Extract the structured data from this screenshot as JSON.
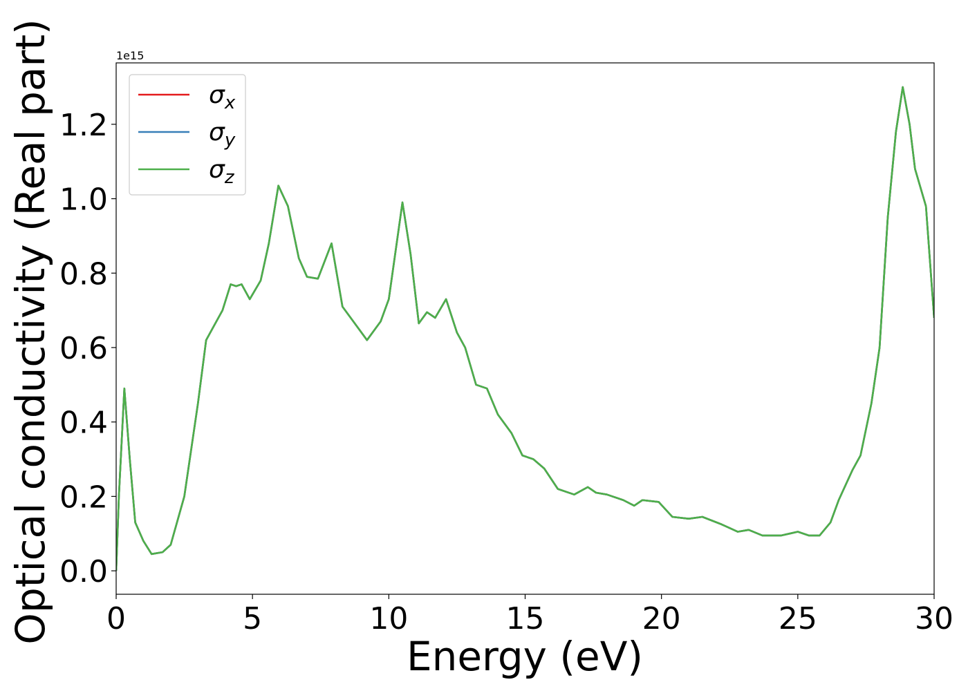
{
  "chart_data": {
    "type": "line",
    "x_label": "Energy (eV)",
    "y_label": "Optical conductivity (Real part)",
    "y_offset_label": "1e15",
    "x": [
      0,
      0.1,
      0.3,
      0.5,
      0.7,
      1.0,
      1.3,
      1.7,
      2.0,
      2.5,
      3.0,
      3.3,
      3.6,
      3.9,
      4.2,
      4.4,
      4.6,
      4.9,
      5.3,
      5.6,
      5.95,
      6.3,
      6.7,
      7.0,
      7.4,
      7.9,
      8.3,
      8.7,
      9.2,
      9.7,
      10.0,
      10.5,
      10.8,
      11.1,
      11.4,
      11.7,
      12.1,
      12.5,
      12.8,
      13.2,
      13.6,
      14.0,
      14.5,
      14.9,
      15.3,
      15.7,
      16.2,
      16.8,
      17.3,
      17.6,
      18.0,
      18.6,
      19.0,
      19.3,
      19.9,
      20.4,
      21.0,
      21.5,
      22.2,
      22.8,
      23.2,
      23.7,
      24.4,
      25.0,
      25.4,
      25.8,
      26.2,
      26.5,
      27.0,
      27.3,
      27.7,
      28.0,
      28.3,
      28.6,
      28.85,
      29.1,
      29.3,
      29.7,
      30
    ],
    "series": [
      {
        "name": "σx",
        "color": "#e41a1c",
        "values": [
          0.0,
          0.2,
          0.49,
          0.3,
          0.13,
          0.08,
          0.045,
          0.05,
          0.07,
          0.2,
          0.45,
          0.62,
          0.66,
          0.7,
          0.77,
          0.765,
          0.77,
          0.73,
          0.78,
          0.88,
          1.035,
          0.98,
          0.84,
          0.79,
          0.785,
          0.88,
          0.71,
          0.67,
          0.62,
          0.67,
          0.73,
          0.99,
          0.85,
          0.665,
          0.695,
          0.68,
          0.73,
          0.64,
          0.6,
          0.5,
          0.49,
          0.42,
          0.37,
          0.31,
          0.3,
          0.275,
          0.22,
          0.205,
          0.225,
          0.21,
          0.205,
          0.19,
          0.175,
          0.19,
          0.185,
          0.145,
          0.14,
          0.145,
          0.125,
          0.105,
          0.11,
          0.095,
          0.095,
          0.105,
          0.095,
          0.095,
          0.13,
          0.19,
          0.27,
          0.31,
          0.45,
          0.6,
          0.95,
          1.18,
          1.3,
          1.2,
          1.08,
          0.98,
          0.68
        ]
      },
      {
        "name": "σy",
        "color": "#377eb8",
        "values": [
          0.0,
          0.2,
          0.49,
          0.3,
          0.13,
          0.08,
          0.045,
          0.05,
          0.07,
          0.2,
          0.45,
          0.62,
          0.66,
          0.7,
          0.77,
          0.765,
          0.77,
          0.73,
          0.78,
          0.88,
          1.035,
          0.98,
          0.84,
          0.79,
          0.785,
          0.88,
          0.71,
          0.67,
          0.62,
          0.67,
          0.73,
          0.99,
          0.85,
          0.665,
          0.695,
          0.68,
          0.73,
          0.64,
          0.6,
          0.5,
          0.49,
          0.42,
          0.37,
          0.31,
          0.3,
          0.275,
          0.22,
          0.205,
          0.225,
          0.21,
          0.205,
          0.19,
          0.175,
          0.19,
          0.185,
          0.145,
          0.14,
          0.145,
          0.125,
          0.105,
          0.11,
          0.095,
          0.095,
          0.105,
          0.095,
          0.095,
          0.13,
          0.19,
          0.27,
          0.31,
          0.45,
          0.6,
          0.95,
          1.18,
          1.3,
          1.2,
          1.08,
          0.98,
          0.68
        ]
      },
      {
        "name": "σz",
        "color": "#4daf4a",
        "values": [
          0.0,
          0.2,
          0.49,
          0.3,
          0.13,
          0.08,
          0.045,
          0.05,
          0.07,
          0.2,
          0.45,
          0.62,
          0.66,
          0.7,
          0.77,
          0.765,
          0.77,
          0.73,
          0.78,
          0.88,
          1.035,
          0.98,
          0.84,
          0.79,
          0.785,
          0.88,
          0.71,
          0.67,
          0.62,
          0.67,
          0.73,
          0.99,
          0.85,
          0.665,
          0.695,
          0.68,
          0.73,
          0.64,
          0.6,
          0.5,
          0.49,
          0.42,
          0.37,
          0.31,
          0.3,
          0.275,
          0.22,
          0.205,
          0.225,
          0.21,
          0.205,
          0.19,
          0.175,
          0.19,
          0.185,
          0.145,
          0.14,
          0.145,
          0.125,
          0.105,
          0.11,
          0.095,
          0.095,
          0.105,
          0.095,
          0.095,
          0.13,
          0.19,
          0.27,
          0.31,
          0.45,
          0.6,
          0.95,
          1.18,
          1.3,
          1.2,
          1.08,
          0.98,
          0.68
        ]
      }
    ],
    "xlim": [
      0,
      30
    ],
    "xticks": [
      0,
      5,
      10,
      15,
      20,
      25,
      30
    ],
    "ylim": [
      -0.063,
      1.365
    ],
    "yticks": [
      {
        "value": 0,
        "label": "0.0"
      },
      0.2,
      0.4,
      0.6,
      0.8,
      {
        "value": 1,
        "label": "1.0"
      },
      1.2
    ],
    "legend": "upper left",
    "grid": false
  }
}
